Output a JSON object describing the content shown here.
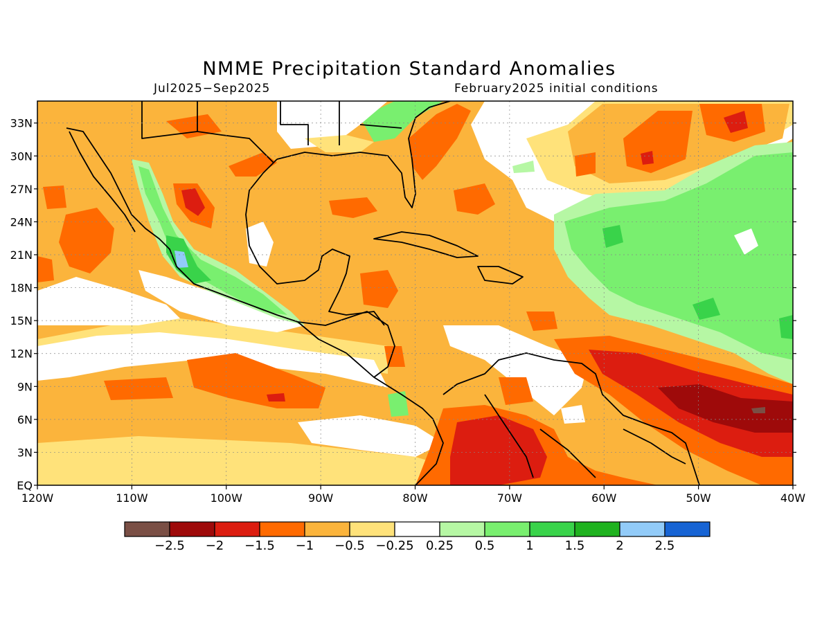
{
  "title": "NMME Precipitation Standard Anomalies",
  "subtitle_left": "Jul2025−Sep2025",
  "subtitle_right": "February2025 initial conditions",
  "lat_labels": [
    "33N",
    "30N",
    "27N",
    "24N",
    "21N",
    "18N",
    "15N",
    "12N",
    "9N",
    "6N",
    "3N",
    "EQ"
  ],
  "lon_labels": [
    "120W",
    "110W",
    "100W",
    "90W",
    "80W",
    "70W",
    "60W",
    "50W",
    "40W"
  ],
  "lat_values": [
    33,
    30,
    27,
    24,
    21,
    18,
    15,
    12,
    9,
    6,
    3,
    0
  ],
  "lon_values": [
    -120,
    -110,
    -100,
    -90,
    -80,
    -70,
    -60,
    -50,
    -40
  ],
  "extent": {
    "lon_min": -120,
    "lon_max": -40,
    "lat_min": 0,
    "lat_max": 35
  },
  "legend": {
    "colors": [
      "#7a4f45",
      "#9e0a0a",
      "#dc1d10",
      "#ff6a00",
      "#fbb43c",
      "#ffe27a",
      "#ffffff",
      "#b6f7a4",
      "#79ef6f",
      "#39d34a",
      "#1fb21f",
      "#92cbf8",
      "#1764d4"
    ],
    "labels": [
      "−2.5",
      "−2",
      "−1.5",
      "−1",
      "−0.5",
      "−0.25",
      "0.25",
      "0.5",
      "1",
      "1.5",
      "2",
      "2.5"
    ]
  }
}
